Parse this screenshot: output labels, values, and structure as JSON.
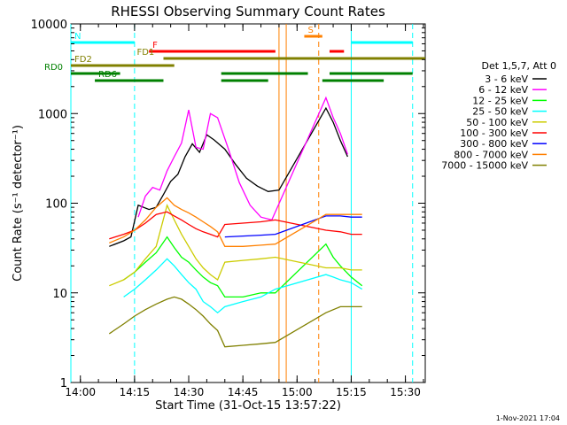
{
  "chart_data": {
    "type": "line",
    "title": "RHESSI Observing Summary Count Rates",
    "xlabel": "Start Time (31-Oct-15 13:57:22)",
    "ylabel": "Count Rate (s⁻¹ detector⁻¹)",
    "y_scale": "log",
    "ylim": [
      1,
      10000
    ],
    "xlim": [
      "13:57:22",
      "15:35:30"
    ],
    "x_ticks": [
      "14:00",
      "14:15",
      "14:30",
      "14:45",
      "15:00",
      "15:15",
      "15:30"
    ],
    "y_ticks": [
      "1",
      "10",
      "100",
      "1000",
      "10000"
    ],
    "legend_title": "Det 1,5,7, Att 0",
    "legend_position": "right",
    "series": [
      {
        "name": "3 - 6 keV",
        "color": "#000000",
        "points": [
          [
            "14:08",
            33
          ],
          [
            "14:12",
            38
          ],
          [
            "14:14",
            42
          ],
          [
            "14:16",
            95
          ],
          [
            "14:19",
            85
          ],
          [
            "14:21",
            90
          ],
          [
            "14:23",
            125
          ],
          [
            "14:25",
            175
          ],
          [
            "14:27",
            210
          ],
          [
            "14:29",
            330
          ],
          [
            "14:31",
            460
          ],
          [
            "14:33",
            370
          ],
          [
            "14:35",
            580
          ],
          [
            "14:37",
            510
          ],
          [
            "14:40",
            400
          ],
          [
            "14:43",
            270
          ],
          [
            "14:46",
            190
          ],
          [
            "14:49",
            155
          ],
          [
            "14:52",
            135
          ],
          [
            "14:55",
            140
          ],
          [
            "15:08",
            1150
          ],
          [
            "15:10",
            800
          ],
          [
            "15:12",
            500
          ],
          [
            "15:14",
            330
          ]
        ]
      },
      {
        "name": "6 - 12 keV",
        "color": "#ff00ff",
        "points": [
          [
            "14:16",
            70
          ],
          [
            "14:18",
            120
          ],
          [
            "14:20",
            150
          ],
          [
            "14:22",
            140
          ],
          [
            "14:24",
            230
          ],
          [
            "14:26",
            330
          ],
          [
            "14:28",
            470
          ],
          [
            "14:30",
            1100
          ],
          [
            "14:32",
            420
          ],
          [
            "14:34",
            400
          ],
          [
            "14:36",
            1000
          ],
          [
            "14:38",
            900
          ],
          [
            "14:41",
            400
          ],
          [
            "14:44",
            170
          ],
          [
            "14:47",
            95
          ],
          [
            "14:50",
            70
          ],
          [
            "14:53",
            65
          ],
          [
            "15:08",
            1500
          ],
          [
            "15:10",
            900
          ],
          [
            "15:12",
            600
          ],
          [
            "15:14",
            350
          ]
        ]
      },
      {
        "name": "12 - 25 keV",
        "color": "#00ff00",
        "points": [
          [
            "14:12",
            14
          ],
          [
            "14:15",
            17
          ],
          [
            "14:18",
            22
          ],
          [
            "14:21",
            28
          ],
          [
            "14:24",
            42
          ],
          [
            "14:26",
            32
          ],
          [
            "14:28",
            25
          ],
          [
            "14:30",
            22
          ],
          [
            "14:32",
            18
          ],
          [
            "14:34",
            15
          ],
          [
            "14:36",
            13
          ],
          [
            "14:38",
            12
          ],
          [
            "14:40",
            9
          ],
          [
            "14:45",
            9
          ],
          [
            "14:50",
            10
          ],
          [
            "14:54",
            10
          ],
          [
            "15:08",
            35
          ],
          [
            "15:10",
            25
          ],
          [
            "15:12",
            20
          ],
          [
            "15:15",
            15
          ],
          [
            "15:18",
            12
          ]
        ]
      },
      {
        "name": "25 - 50 keV",
        "color": "#00ffff",
        "points": [
          [
            "14:12",
            9
          ],
          [
            "14:15",
            11
          ],
          [
            "14:18",
            14
          ],
          [
            "14:21",
            18
          ],
          [
            "14:24",
            24
          ],
          [
            "14:26",
            20
          ],
          [
            "14:28",
            16
          ],
          [
            "14:30",
            13
          ],
          [
            "14:32",
            11
          ],
          [
            "14:34",
            8
          ],
          [
            "14:36",
            7
          ],
          [
            "14:38",
            6
          ],
          [
            "14:40",
            7
          ],
          [
            "14:45",
            8
          ],
          [
            "14:50",
            9
          ],
          [
            "14:54",
            11
          ],
          [
            "15:08",
            16
          ],
          [
            "15:10",
            15
          ],
          [
            "15:12",
            14
          ],
          [
            "15:15",
            13
          ],
          [
            "15:18",
            11
          ]
        ]
      },
      {
        "name": "50 - 100 keV",
        "color": "#cccc00",
        "points": [
          [
            "14:08",
            12
          ],
          [
            "14:12",
            14
          ],
          [
            "14:15",
            17
          ],
          [
            "14:18",
            24
          ],
          [
            "14:21",
            33
          ],
          [
            "14:24",
            95
          ],
          [
            "14:26",
            65
          ],
          [
            "14:28",
            45
          ],
          [
            "14:30",
            33
          ],
          [
            "14:32",
            24
          ],
          [
            "14:34",
            19
          ],
          [
            "14:36",
            16
          ],
          [
            "14:38",
            14
          ],
          [
            "14:40",
            22
          ],
          [
            "14:45",
            23
          ],
          [
            "14:50",
            24
          ],
          [
            "14:54",
            25
          ],
          [
            "15:08",
            19
          ],
          [
            "15:12",
            19
          ],
          [
            "15:15",
            18
          ],
          [
            "15:18",
            18
          ]
        ]
      },
      {
        "name": "100 - 300 keV",
        "color": "#ff0000",
        "points": [
          [
            "14:08",
            40
          ],
          [
            "14:12",
            45
          ],
          [
            "14:15",
            50
          ],
          [
            "14:18",
            60
          ],
          [
            "14:21",
            75
          ],
          [
            "14:24",
            80
          ],
          [
            "14:26",
            72
          ],
          [
            "14:28",
            65
          ],
          [
            "14:30",
            58
          ],
          [
            "14:32",
            52
          ],
          [
            "14:34",
            48
          ],
          [
            "14:36",
            45
          ],
          [
            "14:38",
            42
          ],
          [
            "14:40",
            58
          ],
          [
            "14:45",
            60
          ],
          [
            "14:50",
            62
          ],
          [
            "14:54",
            65
          ],
          [
            "15:08",
            50
          ],
          [
            "15:12",
            48
          ],
          [
            "15:15",
            45
          ],
          [
            "15:18",
            45
          ]
        ]
      },
      {
        "name": "300 - 800 keV",
        "color": "#0000ff",
        "points": [
          [
            "14:40",
            42
          ],
          [
            "14:45",
            43
          ],
          [
            "14:50",
            44
          ],
          [
            "14:54",
            45
          ],
          [
            "15:08",
            72
          ],
          [
            "15:12",
            72
          ],
          [
            "15:15",
            70
          ],
          [
            "15:18",
            70
          ]
        ]
      },
      {
        "name": "800 - 7000 keV",
        "color": "#ff8000",
        "points": [
          [
            "14:08",
            36
          ],
          [
            "14:12",
            42
          ],
          [
            "14:15",
            50
          ],
          [
            "14:18",
            65
          ],
          [
            "14:21",
            90
          ],
          [
            "14:24",
            115
          ],
          [
            "14:26",
            95
          ],
          [
            "14:28",
            85
          ],
          [
            "14:30",
            78
          ],
          [
            "14:32",
            70
          ],
          [
            "14:34",
            62
          ],
          [
            "14:36",
            55
          ],
          [
            "14:38",
            48
          ],
          [
            "14:40",
            33
          ],
          [
            "14:45",
            33
          ],
          [
            "14:50",
            34
          ],
          [
            "14:54",
            35
          ],
          [
            "15:08",
            75
          ],
          [
            "15:12",
            75
          ],
          [
            "15:15",
            75
          ],
          [
            "15:18",
            75
          ]
        ]
      },
      {
        "name": "7000 - 15000 keV",
        "color": "#808000",
        "points": [
          [
            "14:08",
            3.5
          ],
          [
            "14:12",
            4.5
          ],
          [
            "14:15",
            5.5
          ],
          [
            "14:18",
            6.5
          ],
          [
            "14:21",
            7.5
          ],
          [
            "14:24",
            8.5
          ],
          [
            "14:26",
            9
          ],
          [
            "14:28",
            8.5
          ],
          [
            "14:30",
            7.5
          ],
          [
            "14:32",
            6.5
          ],
          [
            "14:34",
            5.5
          ],
          [
            "14:36",
            4.5
          ],
          [
            "14:38",
            3.8
          ],
          [
            "14:40",
            2.5
          ],
          [
            "14:45",
            2.6
          ],
          [
            "14:50",
            2.7
          ],
          [
            "14:54",
            2.8
          ],
          [
            "15:08",
            6
          ],
          [
            "15:12",
            7
          ],
          [
            "15:15",
            7
          ],
          [
            "15:18",
            7
          ]
        ]
      }
    ],
    "annotations": [
      {
        "label": "N",
        "color": "#00ffff",
        "segments": [
          [
            "13:57:22",
            "14:15"
          ],
          [
            "15:15",
            "15:32"
          ]
        ]
      },
      {
        "label": "S",
        "color": "#ff8000",
        "segments": [
          [
            "15:02",
            "15:07"
          ]
        ]
      },
      {
        "label": "F",
        "color": "#ff0000",
        "segments": [
          [
            "14:19",
            "14:54"
          ],
          [
            "15:09",
            "15:13"
          ]
        ]
      },
      {
        "label": "FD1",
        "color": "#808000",
        "segments": [
          [
            "14:23",
            "15:35:30"
          ]
        ]
      },
      {
        "label": "FD2",
        "color": "#808000",
        "segments": [
          [
            "13:57:22",
            "14:26"
          ]
        ]
      },
      {
        "label": "RD0",
        "color": "#008000",
        "segments": [
          [
            "13:57:22",
            "14:11"
          ],
          [
            "14:39",
            "15:03"
          ],
          [
            "15:09",
            "15:32"
          ]
        ]
      },
      {
        "label": "RD6",
        "color": "#008000",
        "segments": [
          [
            "14:04",
            "14:23"
          ],
          [
            "14:39",
            "14:52"
          ],
          [
            "15:07",
            "15:24"
          ]
        ]
      }
    ],
    "vertical_lines": [
      {
        "time": "13:57:22",
        "color": "#00ffff",
        "style": "solid"
      },
      {
        "time": "14:15",
        "color": "#00ffff",
        "style": "dashed"
      },
      {
        "time": "14:55",
        "color": "#ff8000",
        "style": "solid"
      },
      {
        "time": "14:57",
        "color": "#ff8000",
        "style": "solid"
      },
      {
        "time": "15:06",
        "color": "#ff8000",
        "style": "dashed"
      },
      {
        "time": "15:15",
        "color": "#00ffff",
        "style": "solid"
      },
      {
        "time": "15:32",
        "color": "#00ffff",
        "style": "dashed"
      }
    ]
  },
  "footer": {
    "timestamp": "1-Nov-2021 17:04"
  }
}
